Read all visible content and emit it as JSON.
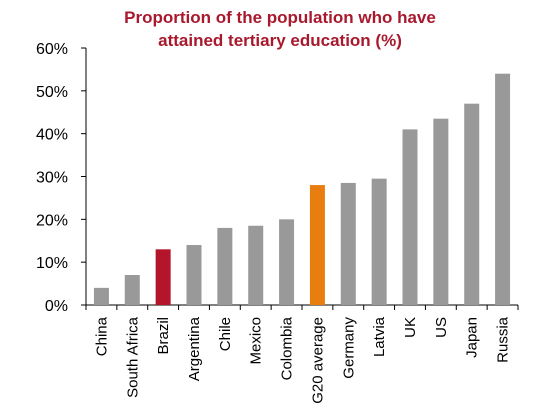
{
  "chart_data": {
    "type": "bar",
    "title_lines": [
      "Proportion of the population who have",
      "attained tertiary education (%)"
    ],
    "categories": [
      "China",
      "South Africa",
      "Brazil",
      "Argentina",
      "Chile",
      "Mexico",
      "Colombia",
      "G20 average",
      "Germany",
      "Latvia",
      "UK",
      "US",
      "Japan",
      "Russia"
    ],
    "values": [
      4,
      7,
      13,
      14,
      18,
      18.5,
      20,
      28,
      28.5,
      29.5,
      41,
      43.5,
      47,
      54
    ],
    "colors": [
      "#999999",
      "#999999",
      "#b5152b",
      "#999999",
      "#999999",
      "#999999",
      "#999999",
      "#ea7d10",
      "#999999",
      "#999999",
      "#999999",
      "#999999",
      "#999999",
      "#999999"
    ],
    "ylim": [
      0,
      60
    ],
    "yticks": [
      0,
      10,
      20,
      30,
      40,
      50,
      60
    ],
    "ytick_labels": [
      "0%",
      "10%",
      "20%",
      "30%",
      "40%",
      "50%",
      "60%"
    ],
    "xlabel": "",
    "ylabel": "",
    "grid": false,
    "legend": "none"
  }
}
